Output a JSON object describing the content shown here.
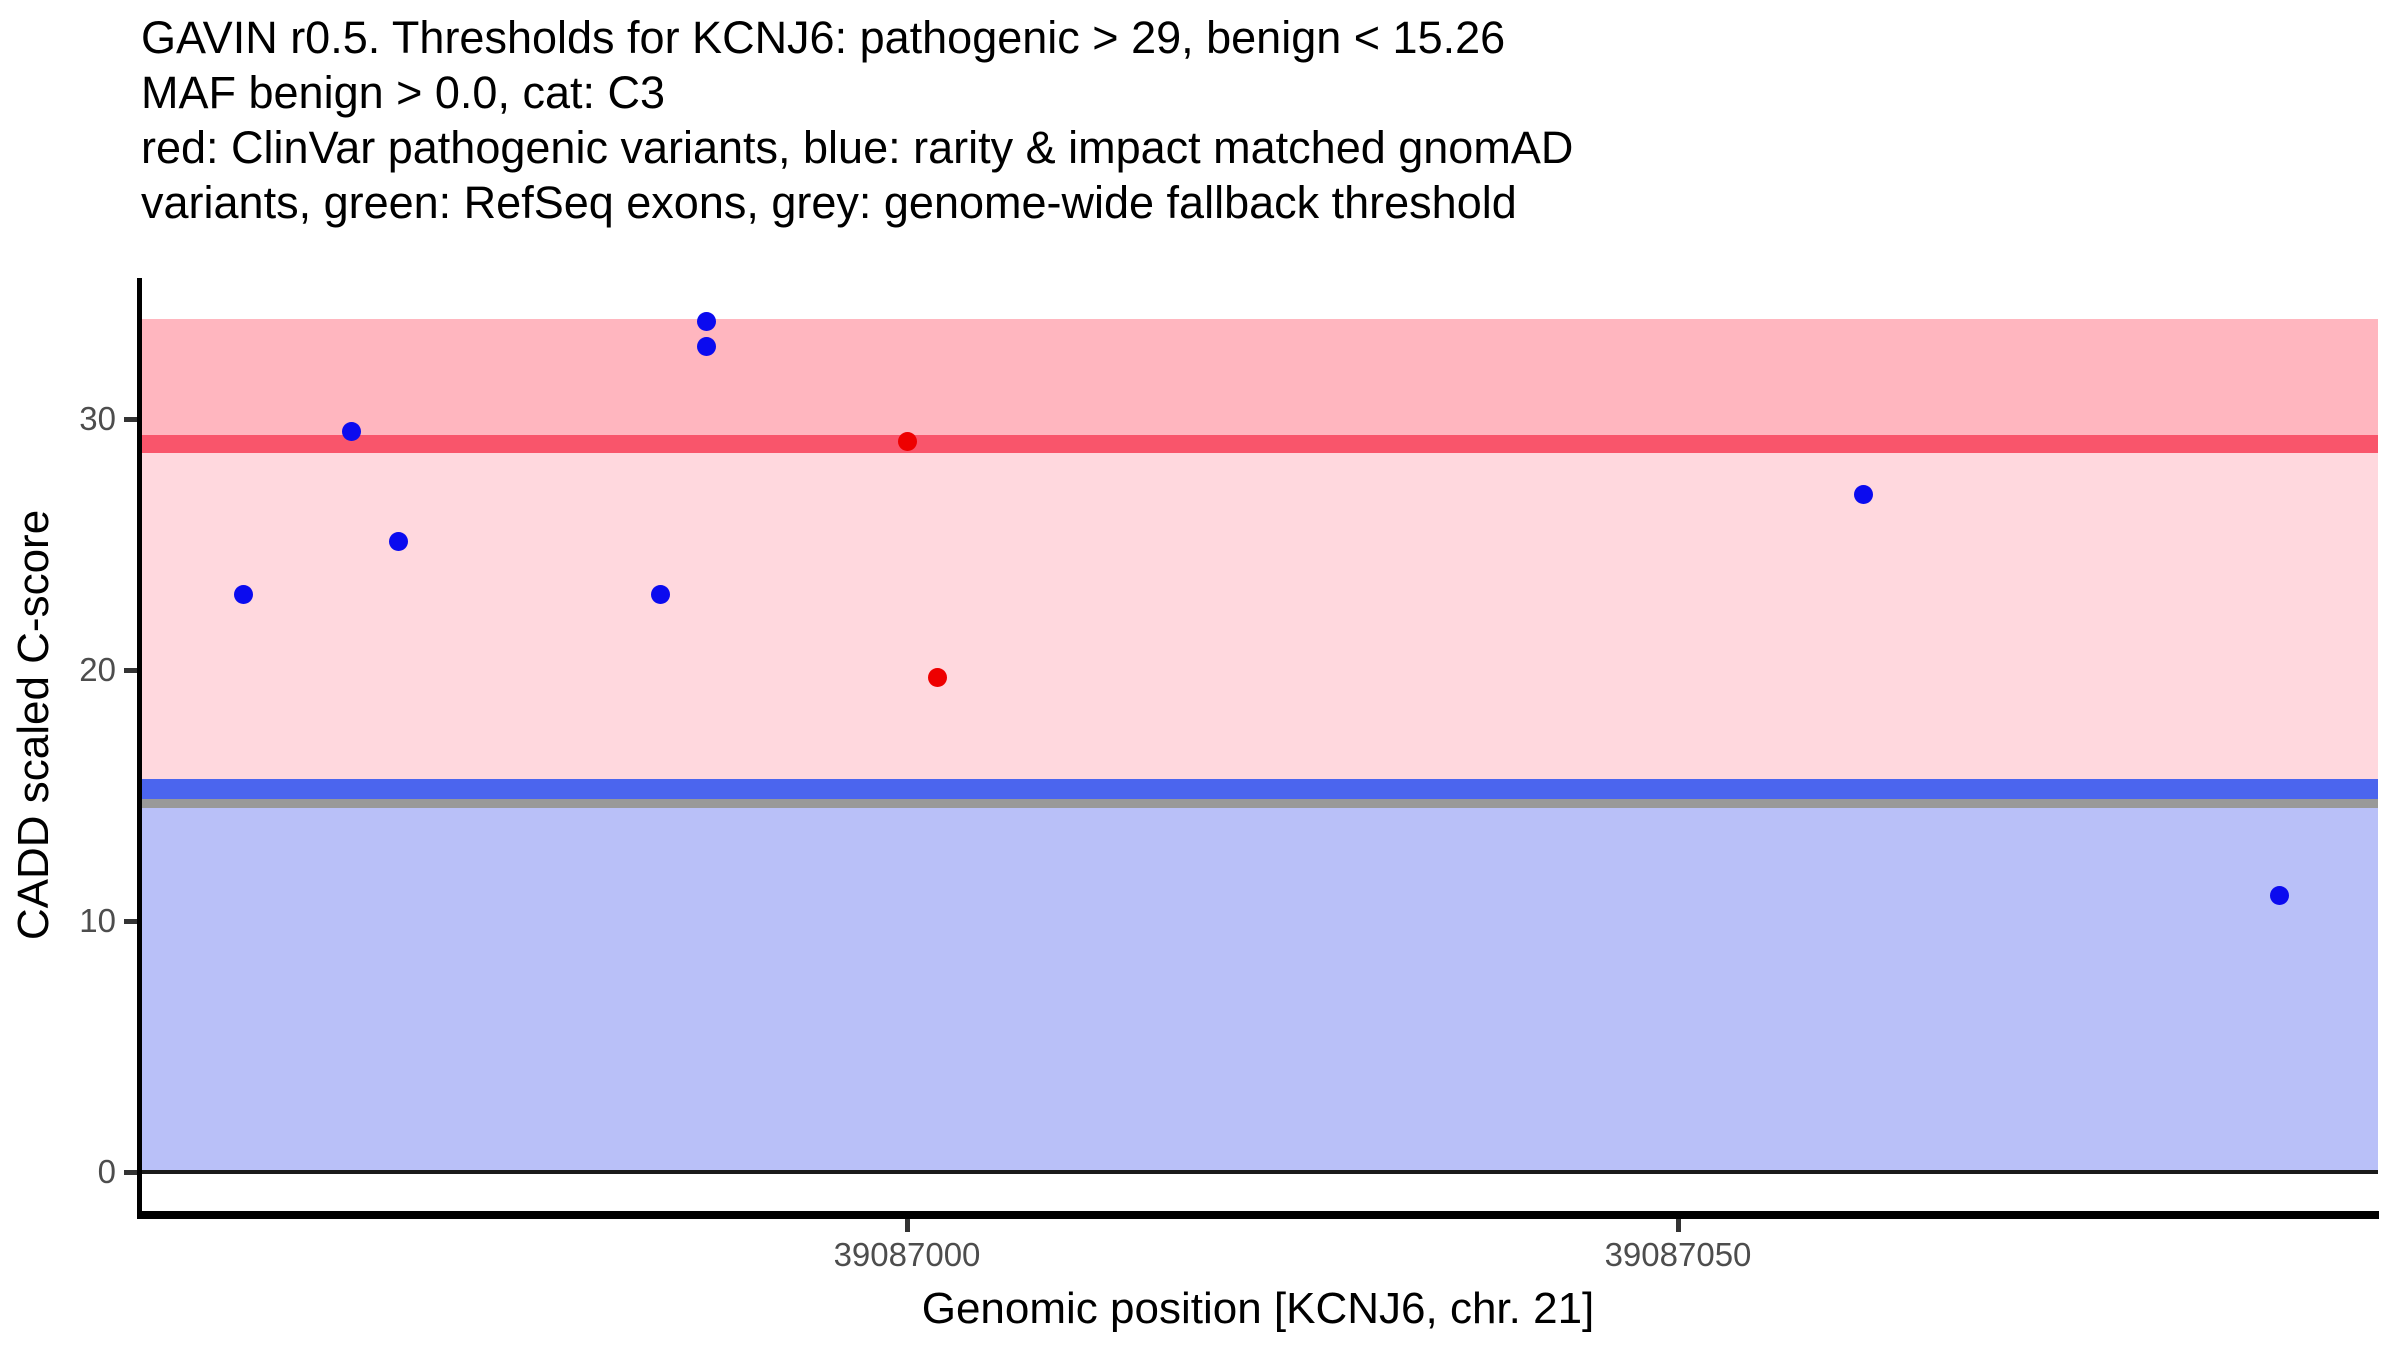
{
  "title": {
    "lines": [
      "GAVIN r0.5. Thresholds for KCNJ6: pathogenic > 29, benign < 15.26",
      "MAF benign > 0.0, cat: C3",
      "red: ClinVar pathogenic variants, blue: rarity & impact matched gnomAD",
      "variants, green: RefSeq exons, grey: genome-wide fallback threshold"
    ]
  },
  "colors": {
    "pathogenic_band": "#ffb6bf",
    "vous_band": "#ffd8de",
    "benign_band": "#b9c0f8",
    "pathogenic_line": "#f9556b",
    "benign_line": "#4b65ee",
    "fallback_line": "#999999",
    "zero_line": "#1a1a1a",
    "clinvar_point": "#ee0000",
    "gnomad_point": "#0b0bef",
    "axis": "#000000",
    "tick_label": "#4d4d4d"
  },
  "chart_data": {
    "type": "scatter",
    "title": "GAVIN r0.5. Thresholds for KCNJ6: pathogenic > 29, benign < 15.26\nMAF benign > 0.0, cat: C3\nred: ClinVar pathogenic variants, blue: rarity & impact matched gnomAD\nvariants, green: RefSeq exons, grey: genome-wide fallback threshold",
    "xlabel": "Genomic position [KCNJ6, chr. 21]",
    "ylabel": "CADD scaled C-score",
    "xlim": [
      39086950,
      39087095
    ],
    "ylim": [
      -1.6,
      35.6
    ],
    "grid": false,
    "legend_position": "none",
    "x_ticks": [
      {
        "value": 39087000,
        "label": "39087000"
      },
      {
        "value": 39087050,
        "label": "39087050"
      }
    ],
    "y_ticks": [
      {
        "value": 0,
        "label": "0"
      },
      {
        "value": 10,
        "label": "10"
      },
      {
        "value": 20,
        "label": "20"
      },
      {
        "value": 30,
        "label": "30"
      }
    ],
    "bands": [
      {
        "name": "pathogenic-zone",
        "from": 29,
        "to": 34,
        "color": "#ffb6bf"
      },
      {
        "name": "vous-zone",
        "from": 15.26,
        "to": 29,
        "color": "#ffd8de"
      },
      {
        "name": "benign-zone",
        "from": 0,
        "to": 15.26,
        "color": "#b9c0f8"
      }
    ],
    "threshold_lines": [
      {
        "name": "pathogenic-threshold",
        "value": 29,
        "color": "#f9556b",
        "thickness": 18
      },
      {
        "name": "genome-wide-fallback-threshold",
        "value": 14.7,
        "color": "#999999",
        "thickness": 10
      },
      {
        "name": "benign-threshold",
        "value": 15.26,
        "color": "#4b65ee",
        "thickness": 20
      },
      {
        "name": "zero-baseline",
        "value": 0,
        "color": "#1a1a1a",
        "thickness": 4
      }
    ],
    "series": [
      {
        "key": "clinvar",
        "name": "ClinVar pathogenic variants",
        "color": "#ee0000",
        "points": [
          {
            "x": 39087000,
            "y": 29.1
          },
          {
            "x": 39087002,
            "y": 19.7
          }
        ]
      },
      {
        "key": "gnomad",
        "name": "rarity & impact matched gnomAD variants",
        "color": "#0b0bef",
        "points": [
          {
            "x": 39086957,
            "y": 23.0
          },
          {
            "x": 39086964,
            "y": 29.5
          },
          {
            "x": 39086967,
            "y": 25.1
          },
          {
            "x": 39086984,
            "y": 23.0
          },
          {
            "x": 39086987,
            "y": 33.9
          },
          {
            "x": 39086987,
            "y": 32.9
          },
          {
            "x": 39087062,
            "y": 27.0
          },
          {
            "x": 39087089,
            "y": 11.0
          }
        ]
      }
    ]
  }
}
